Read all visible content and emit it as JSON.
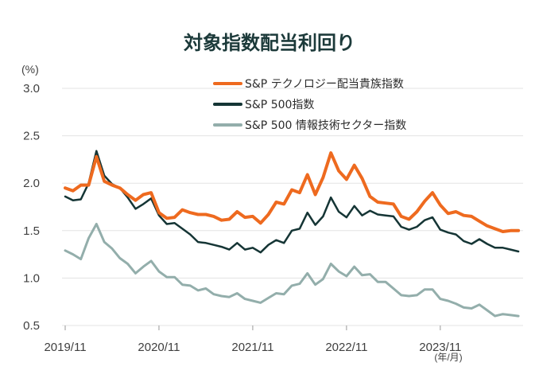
{
  "chart_data": {
    "type": "line",
    "title": "対象指数配当利回り",
    "ylabel": "(%)",
    "xlabel": "(年/月)",
    "ylim": [
      0.5,
      3.0
    ],
    "yticks": [
      "3.0",
      "2.5",
      "2.0",
      "1.5",
      "1.0",
      "0.5"
    ],
    "xticks": [
      "2019/11",
      "2020/11",
      "2021/11",
      "2022/11",
      "2023/11"
    ],
    "grid": true,
    "legend_position": "top-right",
    "x_start": "2019/11",
    "series": [
      {
        "name": "S&P テクノロジー配当貴族指数",
        "color": "#ee6a1f",
        "values": [
          1.95,
          1.92,
          1.98,
          1.98,
          2.28,
          2.02,
          1.98,
          1.95,
          1.88,
          1.82,
          1.88,
          1.9,
          1.69,
          1.63,
          1.64,
          1.72,
          1.69,
          1.67,
          1.67,
          1.65,
          1.61,
          1.62,
          1.7,
          1.64,
          1.65,
          1.58,
          1.67,
          1.8,
          1.78,
          1.93,
          1.9,
          2.09,
          1.88,
          2.06,
          2.32,
          2.13,
          2.04,
          2.19,
          2.05,
          1.86,
          1.8,
          1.79,
          1.78,
          1.65,
          1.62,
          1.7,
          1.81,
          1.9,
          1.77,
          1.68,
          1.7,
          1.66,
          1.65,
          1.6,
          1.55,
          1.52,
          1.49,
          1.5,
          1.5
        ]
      },
      {
        "name": "S&P 500指数",
        "color": "#153535",
        "values": [
          1.86,
          1.82,
          1.83,
          2.0,
          2.34,
          2.08,
          1.99,
          1.95,
          1.85,
          1.73,
          1.78,
          1.84,
          1.66,
          1.57,
          1.58,
          1.52,
          1.46,
          1.38,
          1.37,
          1.35,
          1.33,
          1.3,
          1.37,
          1.3,
          1.32,
          1.27,
          1.35,
          1.4,
          1.37,
          1.5,
          1.52,
          1.69,
          1.56,
          1.65,
          1.85,
          1.7,
          1.64,
          1.76,
          1.66,
          1.71,
          1.67,
          1.66,
          1.65,
          1.54,
          1.51,
          1.54,
          1.61,
          1.64,
          1.51,
          1.48,
          1.46,
          1.39,
          1.36,
          1.41,
          1.36,
          1.32,
          1.32,
          1.3,
          1.28
        ]
      },
      {
        "name": "S&P 500 情報技術セクター指数",
        "color": "#93aeab",
        "values": [
          1.29,
          1.25,
          1.2,
          1.42,
          1.57,
          1.38,
          1.31,
          1.21,
          1.15,
          1.05,
          1.12,
          1.18,
          1.07,
          1.01,
          1.01,
          0.93,
          0.92,
          0.87,
          0.89,
          0.83,
          0.81,
          0.8,
          0.84,
          0.78,
          0.76,
          0.74,
          0.79,
          0.84,
          0.83,
          0.92,
          0.94,
          1.05,
          0.93,
          0.99,
          1.15,
          1.07,
          1.02,
          1.12,
          1.03,
          1.04,
          0.96,
          0.96,
          0.89,
          0.82,
          0.81,
          0.82,
          0.88,
          0.88,
          0.78,
          0.76,
          0.73,
          0.69,
          0.68,
          0.72,
          0.66,
          0.6,
          0.62,
          0.61,
          0.6
        ]
      }
    ]
  }
}
